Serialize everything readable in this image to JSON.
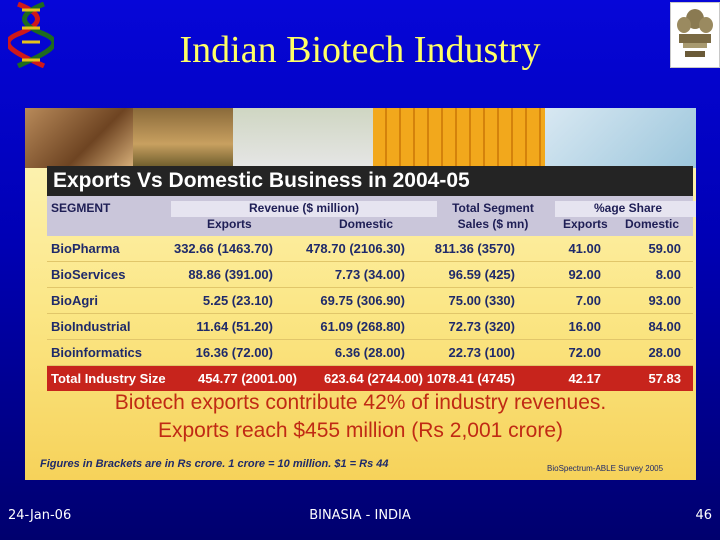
{
  "slide": {
    "title": "Indian Biotech Industry",
    "footer_date": "24-Jan-06",
    "footer_center": "BINASIA - INDIA",
    "footer_page": "46"
  },
  "panel": {
    "heading": "Exports Vs Domestic Business in 2004-05",
    "headers": {
      "segment": "SEGMENT",
      "revenue": "Revenue ($ million)",
      "exports": "Exports",
      "domestic": "Domestic",
      "total_line1": "Total Segment",
      "total_line2": "Sales ($ mn)",
      "share": "%age Share",
      "share_exports": "Exports",
      "share_domestic": "Domestic"
    },
    "rows": [
      {
        "segment": "BioPharma",
        "exports": "332.66 (1463.70)",
        "domestic": "478.70 (2106.30)",
        "total": "811.36 (3570)",
        "exp_share": "41.00",
        "dom_share": "59.00"
      },
      {
        "segment": "BioServices",
        "exports": "88.86 (391.00)",
        "domestic": "7.73 (34.00)",
        "total": "96.59 (425)",
        "exp_share": "92.00",
        "dom_share": "8.00"
      },
      {
        "segment": "BioAgri",
        "exports": "5.25 (23.10)",
        "domestic": "69.75 (306.90)",
        "total": "75.00 (330)",
        "exp_share": "7.00",
        "dom_share": "93.00"
      },
      {
        "segment": "BioIndustrial",
        "exports": "11.64 (51.20)",
        "domestic": "61.09 (268.80)",
        "total": "72.73 (320)",
        "exp_share": "16.00",
        "dom_share": "84.00"
      },
      {
        "segment": "Bioinformatics",
        "exports": "16.36 (72.00)",
        "domestic": "6.36 (28.00)",
        "total": "22.73 (100)",
        "exp_share": "72.00",
        "dom_share": "28.00"
      }
    ],
    "total_row": {
      "segment": "Total Industry Size",
      "exports": "454.77 (2001.00)",
      "domestic": "623.64 (2744.00)",
      "total": "1078.41 (4745)",
      "exp_share": "42.17",
      "dom_share": "57.83"
    },
    "summary_line1": "Biotech exports contribute 42% of industry revenues.",
    "summary_line2": "Exports reach $455 million (Rs 2,001 crore)",
    "footnote": "Figures in Brackets are in Rs crore. 1 crore = 10 million. $1 = Rs 44",
    "source": "BioSpectrum-ABLE Survey 2005"
  },
  "colors": {
    "background": "#0000b4",
    "title_text": "#ffff66",
    "heading_band": "#242424",
    "total_row": "#c7241c",
    "summary_text": "#c02a14",
    "table_text": "#1f2a6a"
  },
  "icons": {
    "top_left": "dna-helix-logo",
    "top_right": "national-emblem-logo"
  }
}
